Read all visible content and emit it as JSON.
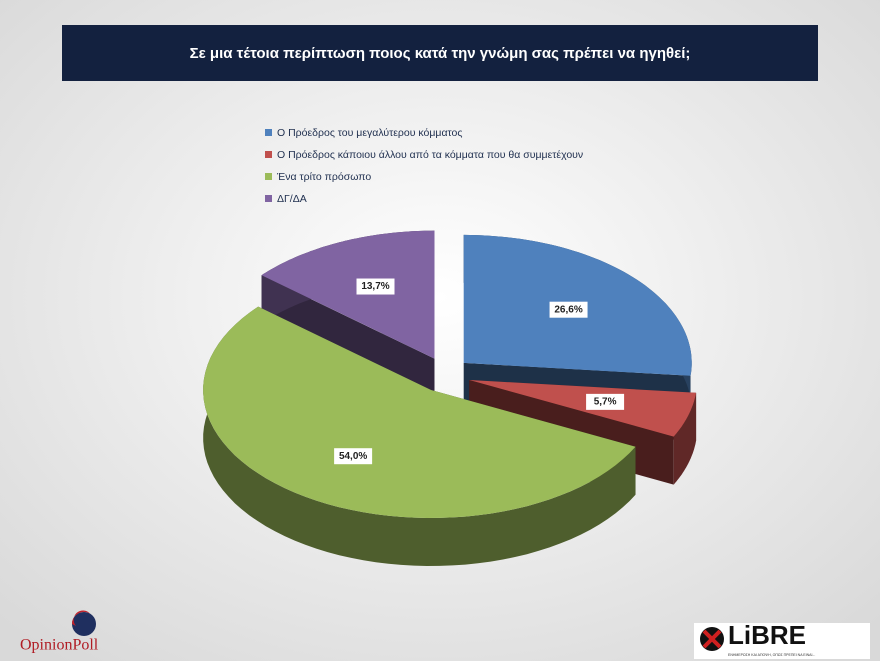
{
  "chart_data": {
    "type": "pie",
    "title": "Σε μια τέτοια περίπτωση ποιος κατά την γνώμη σας πρέπει να ηγηθεί;",
    "categories": [
      "Ο Πρόεδρος του μεγαλύτερου κόμματος",
      "Ο Πρόεδρος κάποιου άλλου από τα κόμματα που θα συμμετέχουν",
      "Ένα τρίτο πρόσωπο",
      "ΔΓ/ΔΑ"
    ],
    "values": [
      26.6,
      5.7,
      54.0,
      13.7
    ],
    "value_labels": [
      "26,6%",
      "5,7%",
      "54,0%",
      "13,7%"
    ],
    "colors": [
      "#4f81bd",
      "#c0504d",
      "#9bbb59",
      "#8064a2"
    ],
    "legend": "top"
  },
  "logos": {
    "left": "OpinionPoll",
    "right": "LiBRE",
    "right_tagline": "ΕΝΗΜΕΡΩΣΗ ΚΑΙ ΑΠΟΨΗ, ΟΠΩΣ ΠΡΕΠΕΙ ΝΑ ΕΙΝΑΙ..."
  }
}
